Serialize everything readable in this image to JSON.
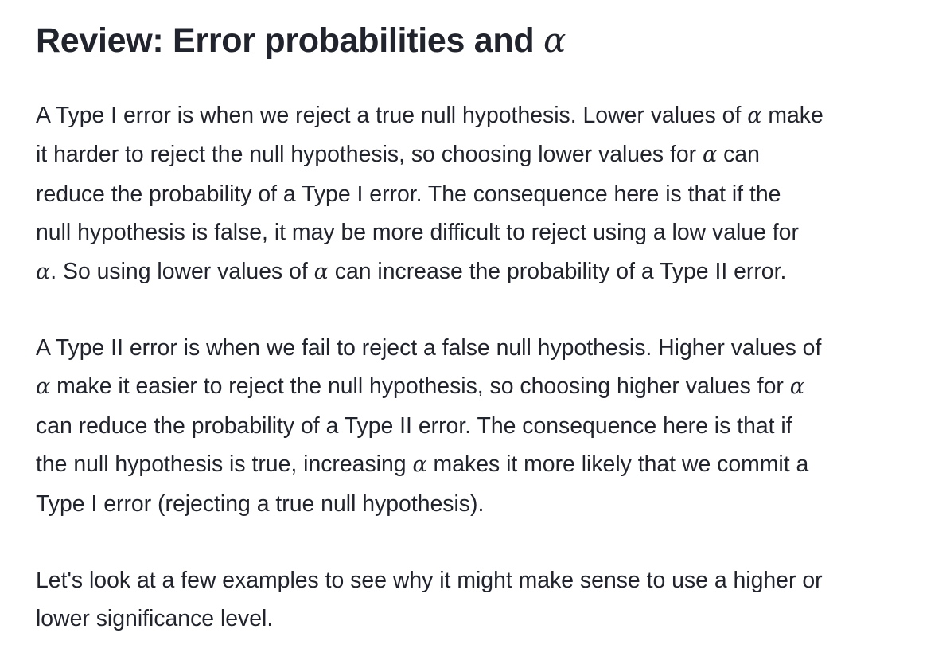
{
  "heading": {
    "text": "Review: Error probabilities and ",
    "symbol": "α"
  },
  "paragraphs": [
    {
      "lines": [
        {
          "parts": [
            {
              "t": "A Type I error is when we reject a true null hypothesis. Lower values of "
            },
            {
              "m": "α"
            },
            {
              "t": " make"
            }
          ]
        },
        {
          "parts": [
            {
              "t": "it harder to reject the null hypothesis, so choosing lower values for "
            },
            {
              "m": "α"
            },
            {
              "t": " can"
            }
          ]
        },
        {
          "parts": [
            {
              "t": "reduce the probability of a Type I error. The consequence here is that if the"
            }
          ]
        },
        {
          "parts": [
            {
              "t": "null hypothesis is false, it may be more difficult to reject using a low value for"
            }
          ]
        },
        {
          "parts": [
            {
              "m": "α"
            },
            {
              "t": ". So using lower values of "
            },
            {
              "m": "α"
            },
            {
              "t": " can increase the probability of a Type II error."
            }
          ]
        }
      ]
    },
    {
      "lines": [
        {
          "parts": [
            {
              "t": "A Type II error is when we fail to reject a false null hypothesis. Higher values of"
            }
          ]
        },
        {
          "parts": [
            {
              "m": "α"
            },
            {
              "t": " make it easier to reject the null hypothesis, so choosing higher values for "
            },
            {
              "m": "α"
            }
          ]
        },
        {
          "parts": [
            {
              "t": "can reduce the probability of a Type II error. The consequence here is that if"
            }
          ]
        },
        {
          "parts": [
            {
              "t": "the null hypothesis is true, increasing "
            },
            {
              "m": "α"
            },
            {
              "t": " makes it more likely that we commit a"
            }
          ]
        },
        {
          "parts": [
            {
              "t": "Type I error (rejecting a true null hypothesis)."
            }
          ]
        }
      ]
    },
    {
      "lines": [
        {
          "parts": [
            {
              "t": "Let's look at a few examples to see why it might make sense to use a higher or"
            }
          ]
        },
        {
          "parts": [
            {
              "t": "lower significance level."
            }
          ]
        }
      ]
    }
  ]
}
